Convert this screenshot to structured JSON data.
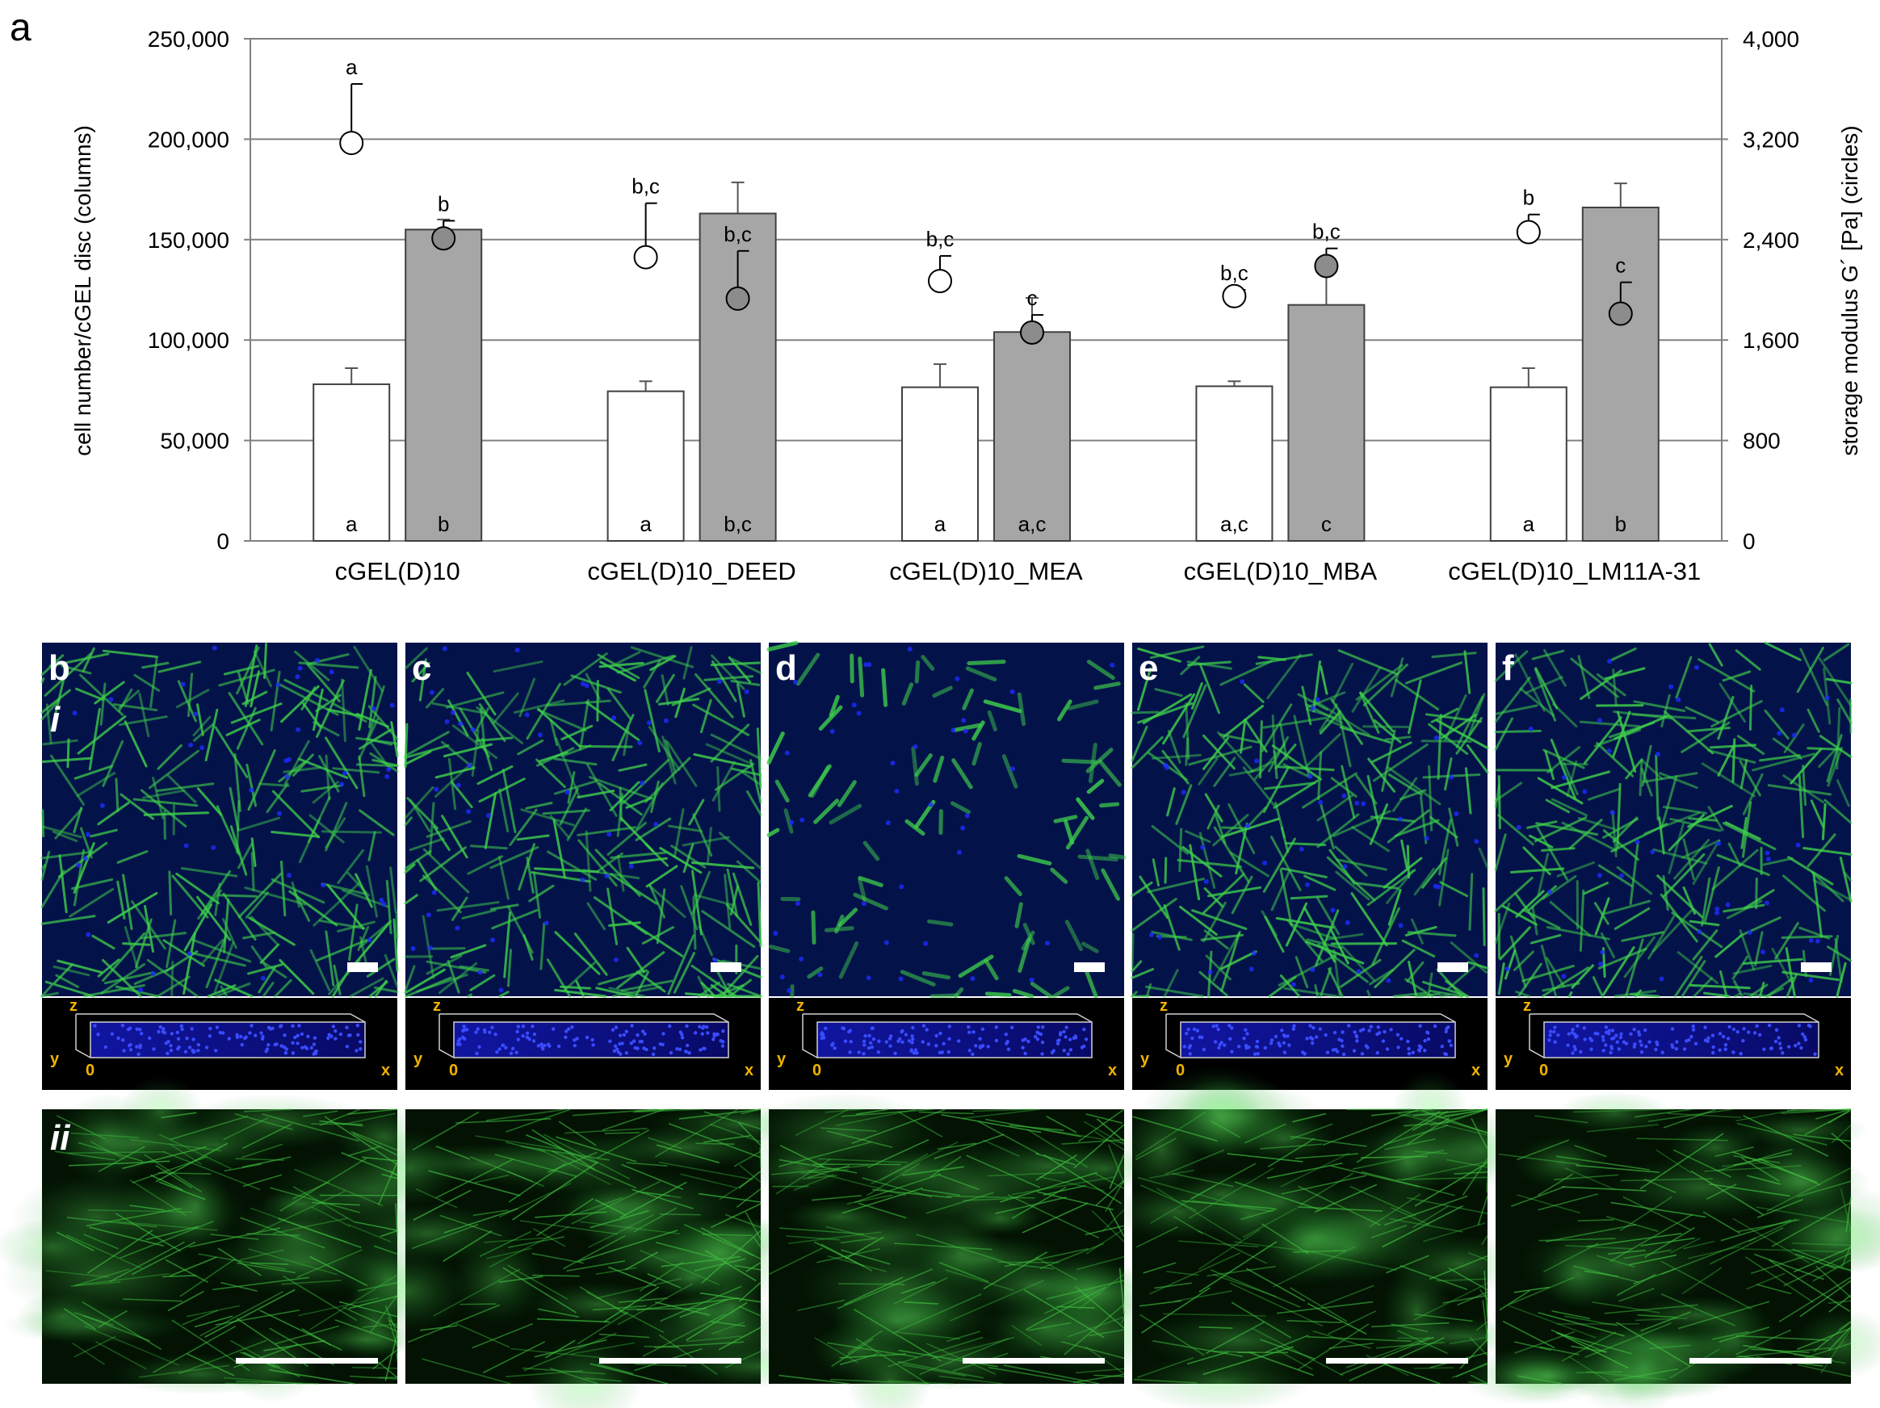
{
  "panel_labels": {
    "a": "a",
    "b": "b",
    "c": "c",
    "d": "d",
    "e": "e",
    "f": "f",
    "row_i": "i",
    "row_ii": "ii"
  },
  "stack_axes": {
    "z": "z",
    "y": "y",
    "origin": "0",
    "x": "x"
  },
  "colors": {
    "white_bar": "#ffffff",
    "grey_bar": "#a6a6a6",
    "grey_circle": "#8c8c8c",
    "gridline": "#808080",
    "stain_green": "#3ecf4a",
    "nuclei_blue": "#1e2cff",
    "axis_label_yellow": "#f0b400"
  },
  "chart_data": {
    "type": "bar",
    "ylabel": "cell number/cGEL disc (columns)",
    "y2label": "storage modulus G´ [Pa] (circles)",
    "ylim": [
      0,
      250000
    ],
    "y2lim": [
      0,
      4000
    ],
    "yticks": [
      "0",
      "50,000",
      "100,000",
      "150,000",
      "200,000",
      "250,000"
    ],
    "y2ticks": [
      "0",
      "800",
      "1,600",
      "2,400",
      "3,200",
      "4,000"
    ],
    "grid": true,
    "categories": [
      "cGEL(D)10",
      "cGEL(D)10_DEED",
      "cGEL(D)10_MEA",
      "cGEL(D)10_MBA",
      "cGEL(D)10_LM11A-31"
    ],
    "bar_series": [
      {
        "fill": "white",
        "values": [
          78000,
          74500,
          76500,
          77000,
          76500
        ],
        "errors": [
          8000,
          5000,
          11500,
          2500,
          9500
        ],
        "labels": [
          "a",
          "a",
          "a",
          "a,c",
          "a"
        ]
      },
      {
        "fill": "grey",
        "values": [
          155000,
          163000,
          104000,
          117500,
          166000
        ],
        "errors": [
          5000,
          15500,
          17000,
          15000,
          12000
        ],
        "labels": [
          "b",
          "b,c",
          "a,c",
          "c",
          "b"
        ]
      }
    ],
    "circle_series": [
      {
        "fill": "white",
        "values": [
          3170,
          2260,
          2070,
          1950,
          2460
        ],
        "errors": [
          470,
          430,
          200,
          50,
          140
        ],
        "labels": [
          "a",
          "b,c",
          "b,c",
          "b,c",
          "b"
        ]
      },
      {
        "fill": "grey",
        "values": [
          2410,
          1930,
          1660,
          2190,
          1810
        ],
        "errors": [
          140,
          380,
          140,
          140,
          250
        ],
        "labels": [
          "b",
          "b,c",
          "c",
          "b,c",
          "c"
        ]
      }
    ]
  }
}
